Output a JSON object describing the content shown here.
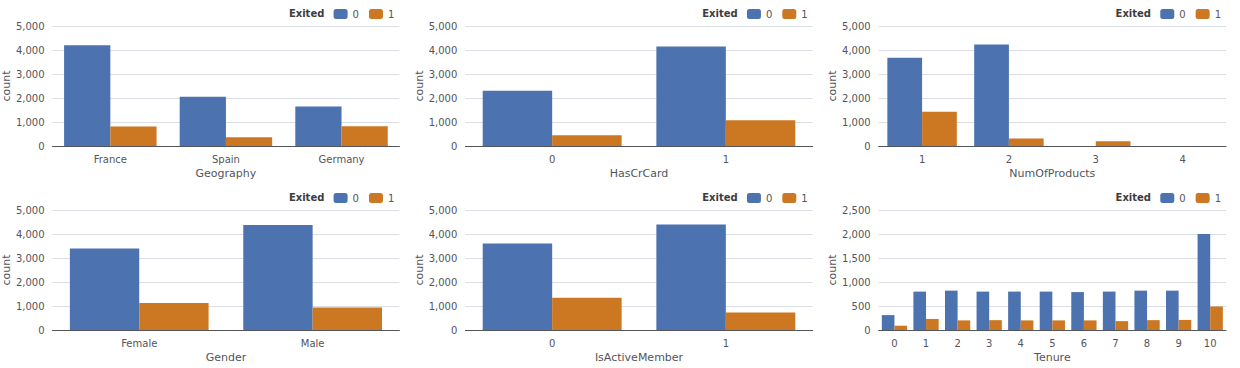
{
  "chart_data": [
    {
      "type": "bar",
      "xlabel": "Geography",
      "ylabel": "count",
      "categories": [
        "France",
        "Spain",
        "Germany"
      ],
      "series": [
        {
          "name": "0",
          "color": "#4C72B0",
          "values": [
            4200,
            2050,
            1650
          ]
        },
        {
          "name": "1",
          "color": "#CC7722",
          "values": [
            810,
            360,
            820
          ]
        }
      ],
      "ylim": [
        0,
        5000
      ],
      "yticks": [
        0,
        1000,
        2000,
        3000,
        4000,
        5000
      ],
      "grid": true,
      "legend": "upper right",
      "legend_title": "Exited"
    },
    {
      "type": "bar",
      "xlabel": "HasCrCard",
      "ylabel": "count",
      "categories": [
        "0",
        "1"
      ],
      "series": [
        {
          "name": "0",
          "color": "#4C72B0",
          "values": [
            2300,
            4150
          ]
        },
        {
          "name": "1",
          "color": "#CC7722",
          "values": [
            450,
            1070
          ]
        }
      ],
      "ylim": [
        0,
        5000
      ],
      "yticks": [
        0,
        1000,
        2000,
        3000,
        4000,
        5000
      ],
      "grid": true,
      "legend": "upper right",
      "legend_title": "Exited"
    },
    {
      "type": "bar",
      "xlabel": "NumOfProducts",
      "ylabel": "count",
      "categories": [
        "1",
        "2",
        "3",
        "4"
      ],
      "series": [
        {
          "name": "0",
          "color": "#4C72B0",
          "values": [
            3680,
            4230,
            0,
            0
          ]
        },
        {
          "name": "1",
          "color": "#CC7722",
          "values": [
            1430,
            310,
            200,
            0
          ]
        }
      ],
      "ylim": [
        0,
        5000
      ],
      "yticks": [
        0,
        1000,
        2000,
        3000,
        4000,
        5000
      ],
      "grid": true,
      "legend": "upper right",
      "legend_title": "Exited"
    },
    {
      "type": "bar",
      "xlabel": "Gender",
      "ylabel": "count",
      "categories": [
        "Female",
        "Male"
      ],
      "series": [
        {
          "name": "0",
          "color": "#4C72B0",
          "values": [
            3400,
            4380
          ]
        },
        {
          "name": "1",
          "color": "#CC7722",
          "values": [
            1130,
            935
          ]
        }
      ],
      "ylim": [
        0,
        5000
      ],
      "yticks": [
        0,
        1000,
        2000,
        3000,
        4000,
        5000
      ],
      "grid": true,
      "legend": "upper right",
      "legend_title": "Exited"
    },
    {
      "type": "bar",
      "xlabel": "IsActiveMember",
      "ylabel": "count",
      "categories": [
        "0",
        "1"
      ],
      "series": [
        {
          "name": "0",
          "color": "#4C72B0",
          "values": [
            3600,
            4400
          ]
        },
        {
          "name": "1",
          "color": "#CC7722",
          "values": [
            1340,
            730
          ]
        }
      ],
      "ylim": [
        0,
        5000
      ],
      "yticks": [
        0,
        1000,
        2000,
        3000,
        4000,
        5000
      ],
      "grid": true,
      "legend": "upper right",
      "legend_title": "Exited"
    },
    {
      "type": "bar",
      "xlabel": "Tenure",
      "ylabel": "count",
      "categories": [
        "0",
        "1",
        "2",
        "3",
        "4",
        "5",
        "6",
        "7",
        "8",
        "9",
        "10"
      ],
      "series": [
        {
          "name": "0",
          "color": "#4C72B0",
          "values": [
            310,
            800,
            820,
            800,
            800,
            800,
            790,
            800,
            820,
            820,
            2000
          ]
        },
        {
          "name": "1",
          "color": "#CC7722",
          "values": [
            90,
            230,
            200,
            205,
            200,
            200,
            200,
            185,
            205,
            210,
            490
          ]
        }
      ],
      "ylim": [
        0,
        2500
      ],
      "yticks": [
        0,
        500,
        1000,
        1500,
        2000,
        2500
      ],
      "grid": true,
      "legend": "upper right",
      "legend_title": "Exited"
    }
  ]
}
